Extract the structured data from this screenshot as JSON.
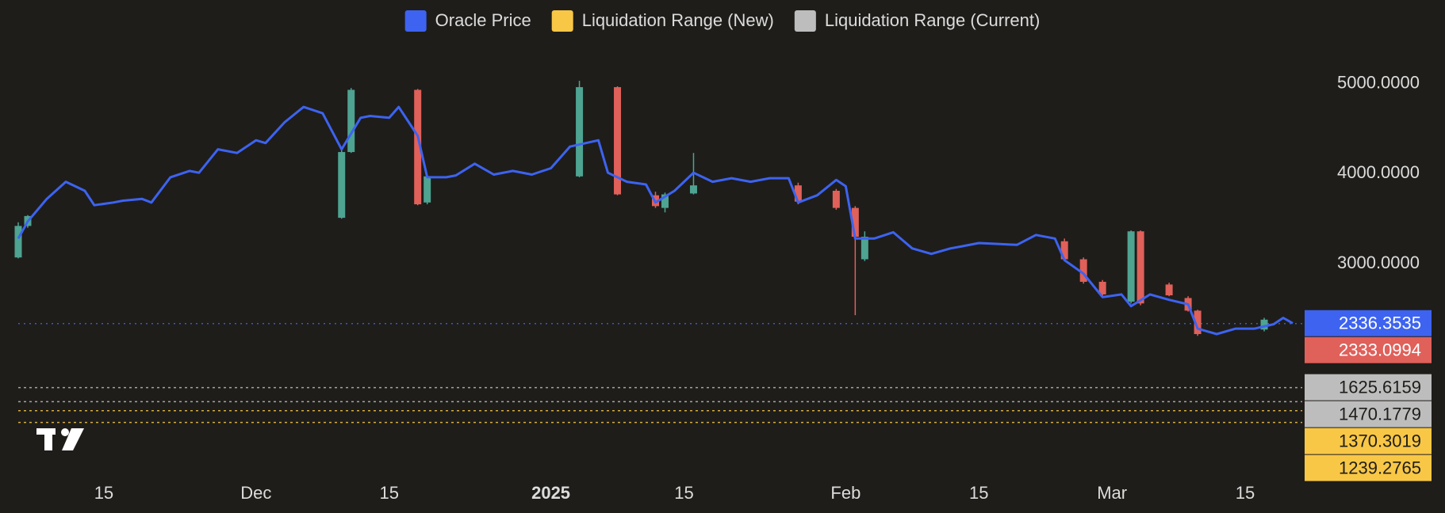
{
  "chart_data": {
    "type": "line",
    "xlim": [
      "2024-11-06",
      "2025-03-21"
    ],
    "xticks": [
      {
        "value": "2024-11-15",
        "label": "15"
      },
      {
        "value": "2024-12-01",
        "label": "Dec"
      },
      {
        "value": "2024-12-15",
        "label": "15"
      },
      {
        "value": "2025-01-01",
        "label": "2025"
      },
      {
        "value": "2025-01-15",
        "label": "15"
      },
      {
        "value": "2025-02-01",
        "label": "Feb"
      },
      {
        "value": "2025-02-15",
        "label": "15"
      },
      {
        "value": "2025-03-01",
        "label": "Mar"
      },
      {
        "value": "2025-03-15",
        "label": "15"
      }
    ],
    "ylim": [
      700,
      5400
    ],
    "yticks": [
      {
        "value": 5000,
        "label": "5000.0000"
      },
      {
        "value": 4000,
        "label": "4000.0000"
      },
      {
        "value": 3000,
        "label": "3000.0000"
      }
    ],
    "series": [
      {
        "name": "Oracle Price",
        "color": "#3d63f0",
        "last_value": 2336.3535,
        "x": [
          "2024-11-06",
          "2024-11-07",
          "2024-11-09",
          "2024-11-11",
          "2024-11-13",
          "2024-11-14",
          "2024-11-16",
          "2024-11-17",
          "2024-11-19",
          "2024-11-20",
          "2024-11-22",
          "2024-11-24",
          "2024-11-25",
          "2024-11-27",
          "2024-11-29",
          "2024-12-01",
          "2024-12-02",
          "2024-12-04",
          "2024-12-06",
          "2024-12-08",
          "2024-12-10",
          "2024-12-12",
          "2024-12-13",
          "2024-12-15",
          "2024-12-16",
          "2024-12-18",
          "2024-12-19",
          "2024-12-21",
          "2024-12-22",
          "2024-12-24",
          "2024-12-26",
          "2024-12-28",
          "2024-12-30",
          "2025-01-01",
          "2025-01-03",
          "2025-01-06",
          "2025-01-07",
          "2025-01-09",
          "2025-01-11",
          "2025-01-12",
          "2025-01-14",
          "2025-01-16",
          "2025-01-18",
          "2025-01-20",
          "2025-01-22",
          "2025-01-24",
          "2025-01-26",
          "2025-01-27",
          "2025-01-29",
          "2025-01-31",
          "2025-02-01",
          "2025-02-02",
          "2025-02-04",
          "2025-02-06",
          "2025-02-08",
          "2025-02-10",
          "2025-02-12",
          "2025-02-13",
          "2025-02-15",
          "2025-02-17",
          "2025-02-19",
          "2025-02-21",
          "2025-02-23",
          "2025-02-24",
          "2025-02-26",
          "2025-02-28",
          "2025-03-02",
          "2025-03-03",
          "2025-03-05",
          "2025-03-07",
          "2025-03-09",
          "2025-03-10",
          "2025-03-12",
          "2025-03-14",
          "2025-03-16",
          "2025-03-18",
          "2025-03-19",
          "2025-03-20"
        ],
        "values": [
          3280,
          3470,
          3720,
          3910,
          3810,
          3650,
          3680,
          3700,
          3720,
          3680,
          3960,
          4030,
          4010,
          4270,
          4230,
          4370,
          4340,
          4570,
          4740,
          4670,
          4270,
          4620,
          4640,
          4620,
          4740,
          4420,
          3960,
          3960,
          3980,
          4110,
          3990,
          4030,
          3990,
          4060,
          4300,
          4370,
          4010,
          3910,
          3880,
          3680,
          3810,
          4010,
          3910,
          3950,
          3910,
          3950,
          3950,
          3680,
          3760,
          3930,
          3860,
          3280,
          3280,
          3350,
          3170,
          3110,
          3170,
          3190,
          3230,
          3220,
          3210,
          3320,
          3280,
          3040,
          2890,
          2630,
          2660,
          2530,
          2660,
          2600,
          2550,
          2280,
          2220,
          2280,
          2280,
          2330,
          2400,
          2340
        ]
      }
    ],
    "ranges": [
      {
        "name": "Liquidation Range (New)",
        "color": "#f8c746",
        "values": [
          1370.3019,
          1239.2765
        ]
      },
      {
        "name": "Liquidation Range (Current)",
        "color": "#bdbdbd",
        "values": [
          1625.6159,
          1470.1779
        ]
      }
    ],
    "last_price": {
      "value": 2333.0994,
      "color": "#e0605a"
    },
    "candles": {
      "up_color": "#4ea391",
      "down_color": "#e0605a",
      "x": [
        "2024-11-06",
        "2024-11-07",
        "2024-12-10",
        "2024-12-11",
        "2024-12-18",
        "2024-12-19",
        "2025-01-04",
        "2025-01-08",
        "2025-01-12",
        "2025-01-13",
        "2025-01-16",
        "2025-01-27",
        "2025-01-31",
        "2025-02-02",
        "2025-02-03",
        "2025-02-24",
        "2025-02-26",
        "2025-02-28",
        "2025-03-03",
        "2025-03-04",
        "2025-03-07",
        "2025-03-09",
        "2025-03-10",
        "2025-03-17"
      ],
      "open": [
        3070,
        3420,
        3510,
        4240,
        4930,
        3680,
        3970,
        4960,
        3760,
        3620,
        3780,
        3870,
        3810,
        3620,
        3050,
        3250,
        3050,
        2800,
        2580,
        3360,
        2770,
        2620,
        2480,
        2270
      ],
      "high": [
        3460,
        3540,
        4260,
        4950,
        4940,
        3990,
        5030,
        4970,
        3800,
        3790,
        4230,
        3900,
        3830,
        3640,
        3360,
        3280,
        3070,
        2820,
        3370,
        3370,
        2790,
        2640,
        2490,
        2400
      ],
      "low": [
        3060,
        3400,
        3500,
        4230,
        3650,
        3660,
        3960,
        3760,
        3620,
        3570,
        3770,
        3660,
        3600,
        2430,
        3030,
        3030,
        2780,
        2640,
        2560,
        2540,
        2640,
        2470,
        2200,
        2250
      ],
      "close": [
        3420,
        3530,
        4240,
        4930,
        3660,
        3970,
        4960,
        3770,
        3640,
        3770,
        3870,
        3690,
        3620,
        3300,
        3300,
        3050,
        2800,
        2660,
        3360,
        2560,
        2650,
        2480,
        2220,
        2380
      ]
    }
  }
}
